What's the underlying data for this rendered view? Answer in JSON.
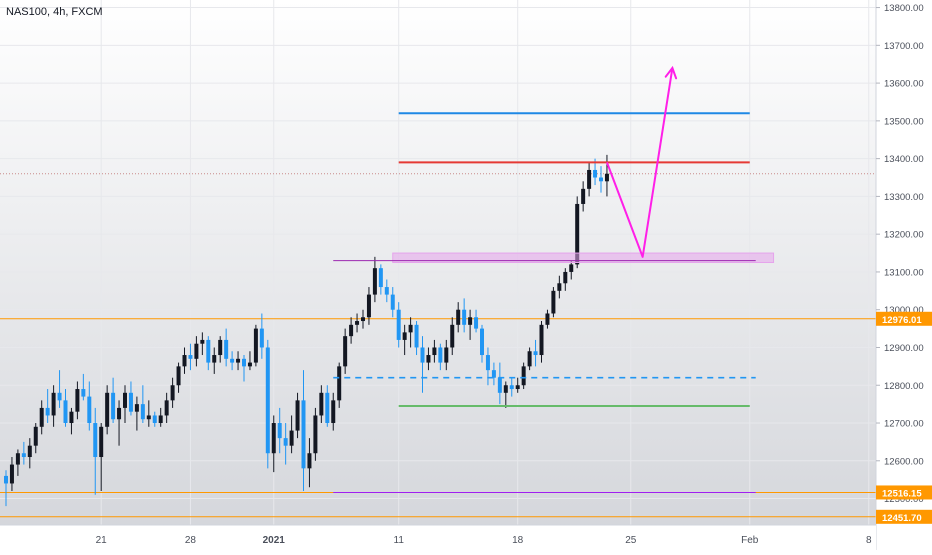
{
  "header": {
    "symbol_label": "NAS100, 4h, FXCM"
  },
  "colors": {
    "background_top": "#ffffff",
    "background_bottom": "#d3d5da",
    "candle_up": "#131722",
    "candle_down": "#2196f3",
    "resistance": "#e53935",
    "target": "#1e88e5",
    "support_green": "#66bb6a",
    "dashed_blue": "#2196f3",
    "purple": "#ab47bc",
    "zone_fill": "#e6a4ec",
    "arrow": "#ff1fe8",
    "orange": "#ff9800"
  },
  "chart_data": {
    "type": "candlestick",
    "symbol": "NAS100",
    "timeframe": "4h",
    "source": "FXCM",
    "y_axis": {
      "range": [
        12430,
        13820
      ],
      "ticks": [
        12500,
        12600,
        12700,
        12800,
        12900,
        13000,
        13100,
        13200,
        13300,
        13400,
        13500,
        13600,
        13700,
        13800
      ],
      "tick_labels": [
        "12500.00",
        "12600.00",
        "12700.00",
        "12800.00",
        "12900.00",
        "13000.00",
        "13100.00",
        "13200.00",
        "13300.00",
        "13400.00",
        "13500.00",
        "13600.00",
        "13700.00",
        "13800.00"
      ]
    },
    "x_axis": {
      "ticks": [
        {
          "label": "21",
          "bar": 16
        },
        {
          "label": "28",
          "bar": 31
        },
        {
          "label": "2021",
          "bar": 45
        },
        {
          "label": "11",
          "bar": 66
        },
        {
          "label": "18",
          "bar": 86
        },
        {
          "label": "25",
          "bar": 105
        },
        {
          "label": "Feb",
          "bar": 125
        },
        {
          "label": "8",
          "bar": 145
        }
      ]
    },
    "price_labels": [
      {
        "value": 12976.01,
        "text": "12976.01",
        "color": "#ff9800"
      },
      {
        "value": 12516.15,
        "text": "12516.15",
        "color": "#ff9800"
      },
      {
        "value": 12451.7,
        "text": "12451.70",
        "color": "#ff9800"
      }
    ],
    "current_price": 13360,
    "candles": [
      [
        12560,
        12575,
        12480,
        12540
      ],
      [
        12540,
        12610,
        12520,
        12590
      ],
      [
        12590,
        12630,
        12560,
        12620
      ],
      [
        12620,
        12650,
        12590,
        12610
      ],
      [
        12610,
        12660,
        12580,
        12640
      ],
      [
        12640,
        12700,
        12620,
        12690
      ],
      [
        12690,
        12760,
        12670,
        12740
      ],
      [
        12740,
        12790,
        12700,
        12720
      ],
      [
        12720,
        12800,
        12690,
        12780
      ],
      [
        12780,
        12840,
        12740,
        12760
      ],
      [
        12760,
        12790,
        12690,
        12700
      ],
      [
        12700,
        12740,
        12670,
        12730
      ],
      [
        12730,
        12810,
        12710,
        12790
      ],
      [
        12790,
        12830,
        12760,
        12770
      ],
      [
        12770,
        12810,
        12680,
        12700
      ],
      [
        12700,
        12740,
        12510,
        12610
      ],
      [
        12610,
        12700,
        12520,
        12690
      ],
      [
        12690,
        12800,
        12670,
        12780
      ],
      [
        12780,
        12820,
        12700,
        12710
      ],
      [
        12710,
        12760,
        12640,
        12740
      ],
      [
        12740,
        12800,
        12700,
        12780
      ],
      [
        12780,
        12810,
        12720,
        12730
      ],
      [
        12730,
        12770,
        12680,
        12750
      ],
      [
        12750,
        12800,
        12700,
        12710
      ],
      [
        12710,
        12760,
        12690,
        12720
      ],
      [
        12720,
        12730,
        12690,
        12700
      ],
      [
        12700,
        12740,
        12690,
        12720
      ],
      [
        12720,
        12780,
        12700,
        12760
      ],
      [
        12760,
        12820,
        12740,
        12800
      ],
      [
        12800,
        12860,
        12780,
        12850
      ],
      [
        12850,
        12900,
        12830,
        12880
      ],
      [
        12880,
        12910,
        12840,
        12870
      ],
      [
        12870,
        12930,
        12850,
        12910
      ],
      [
        12910,
        12940,
        12880,
        12920
      ],
      [
        12920,
        12930,
        12840,
        12860
      ],
      [
        12860,
        12900,
        12830,
        12880
      ],
      [
        12880,
        12930,
        12860,
        12920
      ],
      [
        12920,
        12950,
        12850,
        12870
      ],
      [
        12870,
        12890,
        12840,
        12860
      ],
      [
        12860,
        12890,
        12840,
        12870
      ],
      [
        12870,
        12880,
        12810,
        12850
      ],
      [
        12850,
        12890,
        12840,
        12860
      ],
      [
        12860,
        12960,
        12850,
        12950
      ],
      [
        12950,
        12990,
        12870,
        12900
      ],
      [
        12900,
        12920,
        12580,
        12620
      ],
      [
        12620,
        12720,
        12570,
        12700
      ],
      [
        12700,
        12740,
        12620,
        12660
      ],
      [
        12660,
        12700,
        12590,
        12640
      ],
      [
        12640,
        12720,
        12620,
        12680
      ],
      [
        12680,
        12780,
        12660,
        12760
      ],
      [
        12760,
        12840,
        12520,
        12580
      ],
      [
        12580,
        12660,
        12530,
        12620
      ],
      [
        12620,
        12740,
        12600,
        12720
      ],
      [
        12720,
        12800,
        12700,
        12780
      ],
      [
        12780,
        12800,
        12690,
        12700
      ],
      [
        12700,
        12780,
        12680,
        12760
      ],
      [
        12760,
        12860,
        12740,
        12850
      ],
      [
        12850,
        12950,
        12830,
        12930
      ],
      [
        12930,
        12980,
        12910,
        12960
      ],
      [
        12960,
        12990,
        12940,
        12970
      ],
      [
        12970,
        13000,
        12950,
        12980
      ],
      [
        12980,
        13060,
        12960,
        13040
      ],
      [
        13040,
        13140,
        13020,
        13110
      ],
      [
        13110,
        13120,
        13040,
        13060
      ],
      [
        13060,
        13080,
        13020,
        13040
      ],
      [
        13040,
        13060,
        12980,
        13000
      ],
      [
        13000,
        13020,
        12900,
        12920
      ],
      [
        12920,
        12960,
        12880,
        12940
      ],
      [
        12940,
        12980,
        12900,
        12960
      ],
      [
        12960,
        12970,
        12880,
        12900
      ],
      [
        12900,
        12930,
        12780,
        12860
      ],
      [
        12860,
        12900,
        12840,
        12880
      ],
      [
        12880,
        12920,
        12860,
        12900
      ],
      [
        12900,
        12910,
        12840,
        12860
      ],
      [
        12860,
        12920,
        12840,
        12900
      ],
      [
        12900,
        12980,
        12880,
        12960
      ],
      [
        12960,
        13020,
        12940,
        13000
      ],
      [
        13000,
        13030,
        12940,
        12960
      ],
      [
        12960,
        13000,
        12920,
        12980
      ],
      [
        12980,
        13000,
        12940,
        12950
      ],
      [
        12950,
        12960,
        12860,
        12880
      ],
      [
        12880,
        12900,
        12800,
        12840
      ],
      [
        12840,
        12860,
        12800,
        12820
      ],
      [
        12820,
        12860,
        12750,
        12780
      ],
      [
        12780,
        12810,
        12740,
        12800
      ],
      [
        12800,
        12820,
        12770,
        12790
      ],
      [
        12790,
        12820,
        12780,
        12800
      ],
      [
        12800,
        12860,
        12790,
        12850
      ],
      [
        12850,
        12900,
        12840,
        12890
      ],
      [
        12890,
        12920,
        12850,
        12880
      ],
      [
        12880,
        12970,
        12860,
        12960
      ],
      [
        12960,
        13000,
        12950,
        12990
      ],
      [
        12990,
        13060,
        12980,
        13050
      ],
      [
        13050,
        13090,
        13030,
        13070
      ],
      [
        13070,
        13110,
        13050,
        13100
      ],
      [
        13100,
        13130,
        13080,
        13120
      ],
      [
        13120,
        13300,
        13110,
        13280
      ],
      [
        13280,
        13340,
        13260,
        13320
      ],
      [
        13320,
        13390,
        13300,
        13370
      ],
      [
        13370,
        13400,
        13330,
        13350
      ],
      [
        13350,
        13380,
        13310,
        13340
      ],
      [
        13340,
        13410,
        13300,
        13360
      ]
    ],
    "drawings": [
      {
        "kind": "hline",
        "name": "target-line",
        "price": 13520,
        "from_bar": 66,
        "to_bar": 125,
        "color": "#1e88e5",
        "style": "solid"
      },
      {
        "kind": "hline",
        "name": "resistance-line",
        "price": 13390,
        "from_bar": 66,
        "to_bar": 125,
        "color": "#e53935",
        "style": "solid"
      },
      {
        "kind": "zone",
        "name": "breakout-zone",
        "price_top": 13150,
        "price_bottom": 13125,
        "from_bar": 65,
        "to_bar": 129,
        "color": "#e6a4ec"
      },
      {
        "kind": "hline",
        "name": "zone-purple-line",
        "price": 13130,
        "from_bar": 55,
        "to_bar": 126,
        "color": "#9c27b0",
        "style": "solid"
      },
      {
        "kind": "hline",
        "name": "dashed-support-line",
        "price": 12820,
        "from_bar": 55,
        "to_bar": 126,
        "color": "#2196f3",
        "style": "dashed"
      },
      {
        "kind": "hline",
        "name": "green-support-line",
        "price": 12745,
        "from_bar": 66,
        "to_bar": 125,
        "color": "#66bb6a",
        "style": "solid"
      },
      {
        "kind": "hline",
        "name": "purple-bottom-line",
        "price": 12516,
        "from_bar": 55,
        "to_bar": 126,
        "color": "#a020f0",
        "style": "solid"
      },
      {
        "kind": "path",
        "name": "projection-arrow",
        "points": [
          [
            101,
            13390
          ],
          [
            107,
            13140
          ],
          [
            112,
            13640
          ]
        ],
        "color": "#ff1fe8"
      }
    ]
  }
}
